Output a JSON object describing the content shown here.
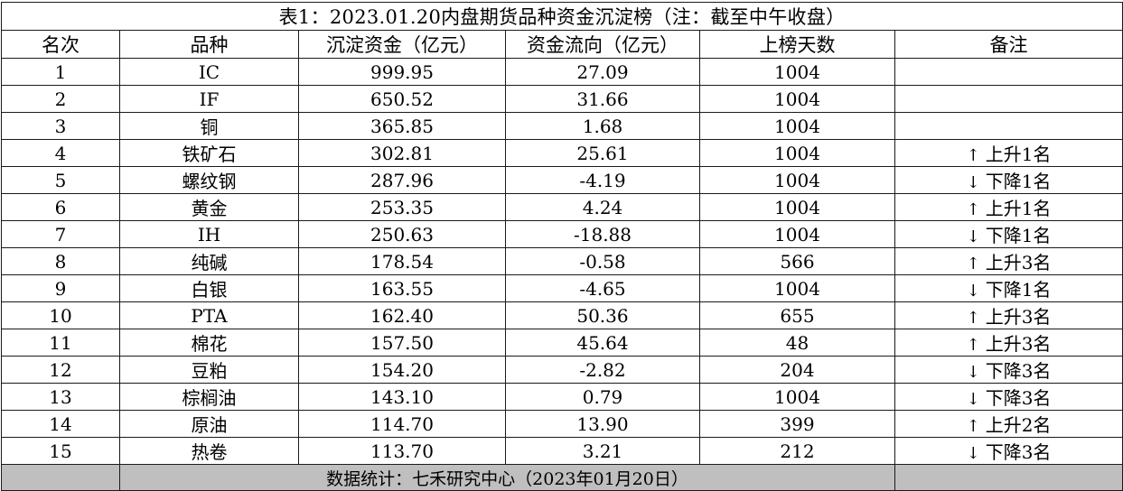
{
  "title": "表1：2023.01.20内盘期货品种资金沉淀榜（注：截至中午收盘）",
  "headers": [
    "名次",
    "品种",
    "沉淀资金（亿元）",
    "资金流向（亿元）",
    "上榜天数",
    "备注"
  ],
  "rows": [
    {
      "rank": "1",
      "name": "IC",
      "funds": "999.95",
      "flow": "27.09",
      "days": "1004",
      "arrow": "",
      "note": ""
    },
    {
      "rank": "2",
      "name": "IF",
      "funds": "650.52",
      "flow": "31.66",
      "days": "1004",
      "arrow": "",
      "note": ""
    },
    {
      "rank": "3",
      "name": "铜",
      "funds": "365.85",
      "flow": "1.68",
      "days": "1004",
      "arrow": "",
      "note": ""
    },
    {
      "rank": "4",
      "name": "铁矿石",
      "funds": "302.81",
      "flow": "25.61",
      "days": "1004",
      "arrow": "↑",
      "note": "上升1名"
    },
    {
      "rank": "5",
      "name": "螺纹钢",
      "funds": "287.96",
      "flow": "-4.19",
      "days": "1004",
      "arrow": "↓",
      "note": "下降1名"
    },
    {
      "rank": "6",
      "name": "黄金",
      "funds": "253.35",
      "flow": "4.24",
      "days": "1004",
      "arrow": "↑",
      "note": "上升1名"
    },
    {
      "rank": "7",
      "name": "IH",
      "funds": "250.63",
      "flow": "-18.88",
      "days": "1004",
      "arrow": "↓",
      "note": "下降1名"
    },
    {
      "rank": "8",
      "name": "纯碱",
      "funds": "178.54",
      "flow": "-0.58",
      "days": "566",
      "arrow": "↑",
      "note": "上升3名"
    },
    {
      "rank": "9",
      "name": "白银",
      "funds": "163.55",
      "flow": "-4.65",
      "days": "1004",
      "arrow": "↓",
      "note": "下降1名"
    },
    {
      "rank": "10",
      "name": "PTA",
      "funds": "162.40",
      "flow": "50.36",
      "days": "655",
      "arrow": "↑",
      "note": "上升3名"
    },
    {
      "rank": "11",
      "name": "棉花",
      "funds": "157.50",
      "flow": "45.64",
      "days": "48",
      "arrow": "↑",
      "note": "上升3名"
    },
    {
      "rank": "12",
      "name": "豆粕",
      "funds": "154.20",
      "flow": "-2.82",
      "days": "204",
      "arrow": "↓",
      "note": "下降3名"
    },
    {
      "rank": "13",
      "name": "棕榈油",
      "funds": "143.10",
      "flow": "0.79",
      "days": "1004",
      "arrow": "↓",
      "note": "下降3名"
    },
    {
      "rank": "14",
      "name": "原油",
      "funds": "114.70",
      "flow": "13.90",
      "days": "399",
      "arrow": "↑",
      "note": "上升2名"
    },
    {
      "rank": "15",
      "name": "热卷",
      "funds": "113.70",
      "flow": "3.21",
      "days": "212",
      "arrow": "↓",
      "note": "下降3名"
    }
  ],
  "footer": "数据统计：七禾研究中心（2023年01月20日）",
  "colors": {
    "footer_bg": "#bfbfbf",
    "grid": "#1a1a1a"
  }
}
